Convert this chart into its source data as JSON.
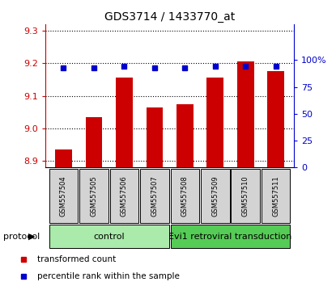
{
  "title": "GDS3714 / 1433770_at",
  "samples": [
    "GSM557504",
    "GSM557505",
    "GSM557506",
    "GSM557507",
    "GSM557508",
    "GSM557509",
    "GSM557510",
    "GSM557511"
  ],
  "bar_values": [
    8.935,
    9.035,
    9.155,
    9.065,
    9.075,
    9.155,
    9.205,
    9.175
  ],
  "percentile_values": [
    93,
    93,
    94,
    93,
    93,
    94,
    94,
    94
  ],
  "bar_color": "#cc0000",
  "dot_color": "#0000cc",
  "ylim_left": [
    8.88,
    9.32
  ],
  "yticks_left": [
    8.9,
    9.0,
    9.1,
    9.2,
    9.3
  ],
  "ylim_right": [
    0,
    133.33
  ],
  "yticks_right": [
    0,
    25,
    50,
    75,
    100
  ],
  "yticklabels_right": [
    "0",
    "25",
    "50",
    "75",
    "100%"
  ],
  "ctrl_color": "#aaeaaa",
  "evi_color": "#55cc55",
  "bar_width": 0.55,
  "legend_bar_label": "transformed count",
  "legend_dot_label": "percentile rank within the sample"
}
